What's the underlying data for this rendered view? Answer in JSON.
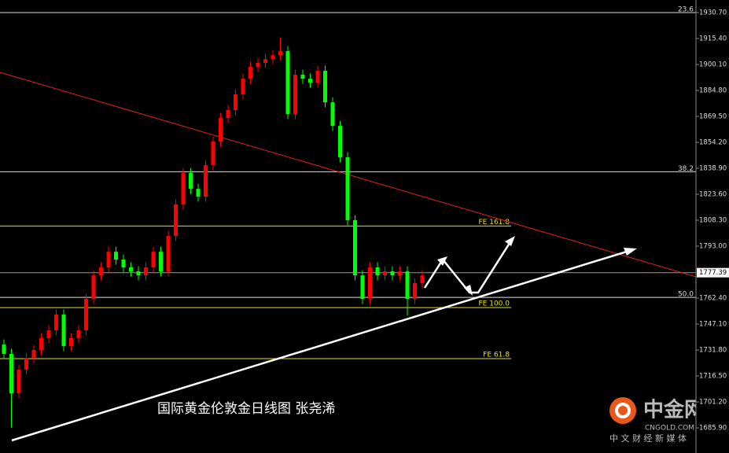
{
  "chart_data": {
    "type": "candlestick",
    "title": "国际黄金伦敦金日线图 张尧浠",
    "rise_color": "#ff0000",
    "fall_color": "#00ff00",
    "open": [
      1735.0,
      1729.5,
      1706.3,
      1720.2,
      1727.2,
      1731.8,
      1738.8,
      1743.4,
      1752.7,
      1734.1,
      1738.8,
      1743.4,
      1761.9,
      1775.8,
      1780.5,
      1789.7,
      1785.1,
      1780.5,
      1778.2,
      1775.8,
      1780.5,
      1789.7,
      1778.2,
      1799.0,
      1817.6,
      1836.1,
      1826.8,
      1822.2,
      1840.7,
      1854.7,
      1868.6,
      1873.2,
      1882.5,
      1891.7,
      1898.7,
      1901.0,
      1903.3,
      1905.6,
      1908.0,
      1870.9,
      1894.1,
      1891.7,
      1889.4,
      1896.4,
      1877.8,
      1863.9,
      1845.4,
      1808.3,
      1775.8,
      1761.9,
      1780.5,
      1775.8,
      1778.2,
      1775.8,
      1778.2,
      1761.9,
      1771.2
    ],
    "high": [
      1738.0,
      1732.5,
      1723.2,
      1730.2,
      1734.8,
      1741.8,
      1746.4,
      1755.7,
      1755.7,
      1741.8,
      1746.4,
      1764.9,
      1778.8,
      1783.5,
      1792.7,
      1792.7,
      1788.1,
      1783.5,
      1781.2,
      1783.5,
      1792.7,
      1792.7,
      1802.0,
      1820.6,
      1839.1,
      1839.1,
      1829.8,
      1843.7,
      1857.7,
      1871.6,
      1876.2,
      1885.5,
      1894.7,
      1901.7,
      1904.0,
      1906.3,
      1908.6,
      1916.0,
      1911.0,
      1897.1,
      1897.1,
      1894.7,
      1899.4,
      1899.4,
      1880.8,
      1866.9,
      1848.4,
      1811.3,
      1778.8,
      1783.5,
      1783.5,
      1781.2,
      1781.2,
      1781.2,
      1781.2,
      1774.2,
      1778.8
    ],
    "low": [
      1726.5,
      1686.0,
      1703.3,
      1717.2,
      1724.2,
      1728.8,
      1735.8,
      1740.4,
      1731.1,
      1731.1,
      1735.8,
      1740.4,
      1758.9,
      1772.8,
      1777.5,
      1782.1,
      1777.5,
      1775.2,
      1772.8,
      1772.8,
      1777.5,
      1775.2,
      1775.2,
      1796.0,
      1814.6,
      1823.8,
      1819.2,
      1819.2,
      1837.7,
      1851.7,
      1865.6,
      1870.2,
      1879.5,
      1888.7,
      1895.7,
      1898.0,
      1900.3,
      1902.6,
      1867.9,
      1867.9,
      1888.7,
      1886.4,
      1886.4,
      1874.8,
      1860.9,
      1842.4,
      1805.3,
      1772.8,
      1758.9,
      1758.9,
      1772.8,
      1772.8,
      1772.8,
      1772.8,
      1752.0,
      1758.9,
      1768.2
    ],
    "close": [
      1729.5,
      1706.3,
      1720.2,
      1727.2,
      1731.8,
      1738.8,
      1743.4,
      1752.7,
      1734.1,
      1738.8,
      1743.4,
      1761.9,
      1775.8,
      1780.5,
      1789.7,
      1785.1,
      1780.5,
      1778.2,
      1775.8,
      1780.5,
      1789.7,
      1778.2,
      1799.0,
      1817.6,
      1836.1,
      1826.8,
      1822.2,
      1840.7,
      1854.7,
      1868.6,
      1873.2,
      1882.5,
      1891.7,
      1898.7,
      1901.0,
      1903.3,
      1905.6,
      1908.0,
      1870.9,
      1894.1,
      1891.7,
      1889.4,
      1896.4,
      1877.8,
      1863.9,
      1845.4,
      1808.3,
      1775.8,
      1761.9,
      1780.5,
      1775.8,
      1778.2,
      1775.8,
      1778.2,
      1761.9,
      1771.2,
      1775.8
    ],
    "ylim": [
      1671.1,
      1938.1
    ],
    "yticks": [
      {
        "value": 1930.7,
        "label": "1930.70"
      },
      {
        "value": 1915.4,
        "label": "1915.40"
      },
      {
        "value": 1900.1,
        "label": "1900.10"
      },
      {
        "value": 1884.8,
        "label": "1884.80"
      },
      {
        "value": 1869.5,
        "label": "1869.50"
      },
      {
        "value": 1854.2,
        "label": "1854.20"
      },
      {
        "value": 1838.9,
        "label": "1838.90"
      },
      {
        "value": 1823.6,
        "label": "1823.60"
      },
      {
        "value": 1808.3,
        "label": "1808.30"
      },
      {
        "value": 1793.0,
        "label": "1793.00"
      },
      {
        "value": 1762.4,
        "label": "1762.40"
      },
      {
        "value": 1747.1,
        "label": "1747.10"
      },
      {
        "value": 1731.8,
        "label": "1731.80"
      },
      {
        "value": 1716.5,
        "label": "1716.50"
      },
      {
        "value": 1701.2,
        "label": "1701.20"
      },
      {
        "value": 1685.9,
        "label": "1685.90"
      }
    ],
    "retracements": [
      {
        "label": "23.6",
        "value": 1930.7
      },
      {
        "label": "38.2",
        "value": 1836.9
      },
      {
        "label": "50.0",
        "value": 1762.8
      }
    ],
    "expansions": [
      {
        "label": "FE 161.8",
        "value": 1804.9
      },
      {
        "label": "FE 100.0",
        "value": 1756.8
      },
      {
        "label": "FE 61.8",
        "value": 1726.7
      }
    ],
    "last_price": {
      "value": 1777.39,
      "label": "1777.39"
    }
  },
  "logo": {
    "name": "中金网",
    "domain": "CNGOLD.COM",
    "slogan": "中 文 财 经 新 媒 体"
  }
}
